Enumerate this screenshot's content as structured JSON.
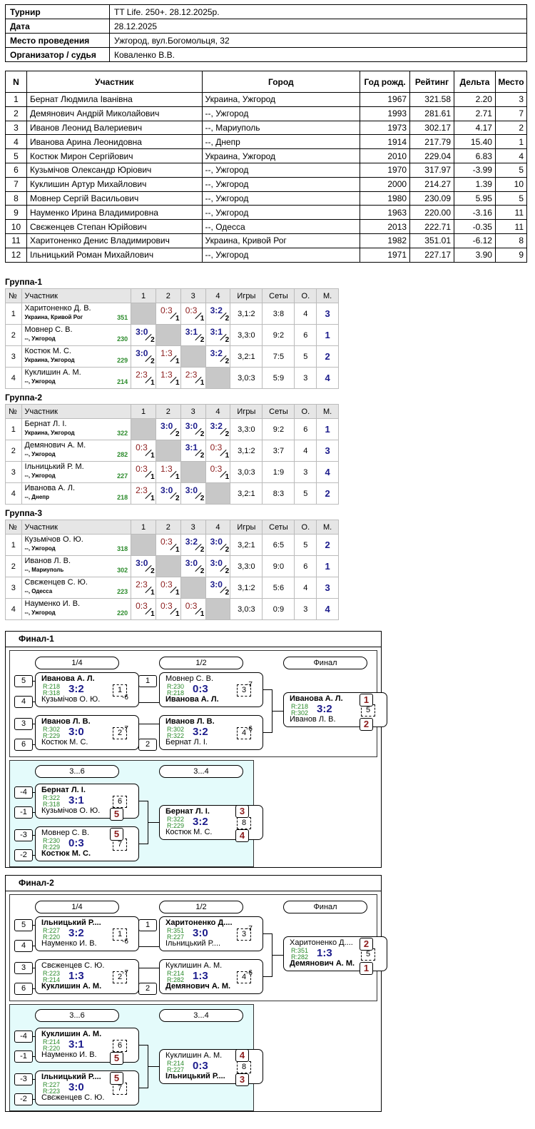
{
  "info": [
    {
      "k": "Турнир",
      "v": "TT Life. 250+. 28.12.2025р."
    },
    {
      "k": "Дата",
      "v": "28.12.2025"
    },
    {
      "k": "Место проведения",
      "v": "Ужгород, вул.Богомольця, 32"
    },
    {
      "k": "Организатор / судья",
      "v": "Коваленко В.В."
    }
  ],
  "participants": {
    "headers": [
      "N",
      "Участник",
      "Город",
      "Год рожд.",
      "Рейтинг",
      "Дельта",
      "Место"
    ],
    "rows": [
      [
        "1",
        "Бернат Людмила Іванівна",
        "Украина, Ужгород",
        "1967",
        "321.58",
        "2.20",
        "3"
      ],
      [
        "2",
        "Демянович Андрій Миколайович",
        "--, Ужгород",
        "1993",
        "281.61",
        "2.71",
        "7"
      ],
      [
        "3",
        "Иванов Леонид Валериевич",
        "--, Мариуполь",
        "1973",
        "302.17",
        "4.17",
        "2"
      ],
      [
        "4",
        "Иванова Арина Леонидовна",
        "--, Днепр",
        "1914",
        "217.79",
        "15.40",
        "1"
      ],
      [
        "5",
        "Костюк Мирон Сергійович",
        "Украина, Ужгород",
        "2010",
        "229.04",
        "6.83",
        "4"
      ],
      [
        "6",
        "Кузьмічов Олександр Юріович",
        "--, Ужгород",
        "1970",
        "317.97",
        "-3.99",
        "5"
      ],
      [
        "7",
        "Куклишин Артур Михайлович",
        "--, Ужгород",
        "2000",
        "214.27",
        "1.39",
        "10"
      ],
      [
        "8",
        "Мовнер Сергій Васильович",
        "--, Ужгород",
        "1980",
        "230.09",
        "5.95",
        "5"
      ],
      [
        "9",
        "Науменко Ирина Владимировна",
        "--, Ужгород",
        "1963",
        "220.00",
        "-3.16",
        "11"
      ],
      [
        "10",
        "Свєженцев Степан Юрійович",
        "--, Одесса",
        "2013",
        "222.71",
        "-0.35",
        "11"
      ],
      [
        "11",
        "Харитоненко Денис Владимирович",
        "Украина, Кривой Рог",
        "1982",
        "351.01",
        "-6.12",
        "8"
      ],
      [
        "12",
        "Ільницький Роман Михайлович",
        "--, Ужгород",
        "1971",
        "227.17",
        "3.90",
        "9"
      ]
    ]
  },
  "group_headers": [
    "№",
    "Участник",
    "1",
    "2",
    "3",
    "4",
    "Игры",
    "Сеты",
    "О.",
    "М."
  ],
  "groups": [
    {
      "title": "Группа-1",
      "rows": [
        {
          "n": "1",
          "name": "Харитоненко Д. В.",
          "city": "Украина, Кривой Рог",
          "rating": "351",
          "cells": [
            null,
            [
              "0:3",
              "1",
              "l"
            ],
            [
              "0:3",
              "1",
              "l"
            ],
            [
              "3:2",
              "2",
              "w"
            ]
          ],
          "games": "3,1:2",
          "sets": "3:8",
          "pts": "4",
          "place": "3"
        },
        {
          "n": "2",
          "name": "Мовнер С. В.",
          "city": "--, Ужгород",
          "rating": "230",
          "cells": [
            [
              "3:0",
              "2",
              "w"
            ],
            null,
            [
              "3:1",
              "2",
              "w"
            ],
            [
              "3:1",
              "2",
              "w"
            ]
          ],
          "games": "3,3:0",
          "sets": "9:2",
          "pts": "6",
          "place": "1"
        },
        {
          "n": "3",
          "name": "Костюк М. С.",
          "city": "Украина, Ужгород",
          "rating": "229",
          "cells": [
            [
              "3:0",
              "2",
              "w"
            ],
            [
              "1:3",
              "1",
              "l"
            ],
            null,
            [
              "3:2",
              "2",
              "w"
            ]
          ],
          "games": "3,2:1",
          "sets": "7:5",
          "pts": "5",
          "place": "2"
        },
        {
          "n": "4",
          "name": "Куклишин А. М.",
          "city": "--, Ужгород",
          "rating": "214",
          "cells": [
            [
              "2:3",
              "1",
              "l"
            ],
            [
              "1:3",
              "1",
              "l"
            ],
            [
              "2:3",
              "1",
              "l"
            ],
            null
          ],
          "games": "3,0:3",
          "sets": "5:9",
          "pts": "3",
          "place": "4"
        }
      ]
    },
    {
      "title": "Группа-2",
      "rows": [
        {
          "n": "1",
          "name": "Бернат Л. І.",
          "city": "Украина, Ужгород",
          "rating": "322",
          "cells": [
            null,
            [
              "3:0",
              "2",
              "w"
            ],
            [
              "3:0",
              "2",
              "w"
            ],
            [
              "3:2",
              "2",
              "w"
            ]
          ],
          "games": "3,3:0",
          "sets": "9:2",
          "pts": "6",
          "place": "1"
        },
        {
          "n": "2",
          "name": "Демянович А. М.",
          "city": "--, Ужгород",
          "rating": "282",
          "cells": [
            [
              "0:3",
              "1",
              "l"
            ],
            null,
            [
              "3:1",
              "2",
              "w"
            ],
            [
              "0:3",
              "1",
              "l"
            ]
          ],
          "games": "3,1:2",
          "sets": "3:7",
          "pts": "4",
          "place": "3"
        },
        {
          "n": "3",
          "name": "Ільницький Р. М.",
          "city": "--, Ужгород",
          "rating": "227",
          "cells": [
            [
              "0:3",
              "1",
              "l"
            ],
            [
              "1:3",
              "1",
              "l"
            ],
            null,
            [
              "0:3",
              "1",
              "l"
            ]
          ],
          "games": "3,0:3",
          "sets": "1:9",
          "pts": "3",
          "place": "4"
        },
        {
          "n": "4",
          "name": "Иванова А. Л.",
          "city": "--, Днепр",
          "rating": "218",
          "cells": [
            [
              "2:3",
              "1",
              "l"
            ],
            [
              "3:0",
              "2",
              "w"
            ],
            [
              "3:0",
              "2",
              "w"
            ],
            null
          ],
          "games": "3,2:1",
          "sets": "8:3",
          "pts": "5",
          "place": "2"
        }
      ]
    },
    {
      "title": "Группа-3",
      "rows": [
        {
          "n": "1",
          "name": "Кузьмічов О. Ю.",
          "city": "--, Ужгород",
          "rating": "318",
          "cells": [
            null,
            [
              "0:3",
              "1",
              "l"
            ],
            [
              "3:2",
              "2",
              "w"
            ],
            [
              "3:0",
              "2",
              "w"
            ]
          ],
          "games": "3,2:1",
          "sets": "6:5",
          "pts": "5",
          "place": "2"
        },
        {
          "n": "2",
          "name": "Иванов Л. В.",
          "city": "--, Мариуполь",
          "rating": "302",
          "cells": [
            [
              "3:0",
              "2",
              "w"
            ],
            null,
            [
              "3:0",
              "2",
              "w"
            ],
            [
              "3:0",
              "2",
              "w"
            ]
          ],
          "games": "3,3:0",
          "sets": "9:0",
          "pts": "6",
          "place": "1"
        },
        {
          "n": "3",
          "name": "Свєженцев С. Ю.",
          "city": "--, Одесса",
          "rating": "223",
          "cells": [
            [
              "2:3",
              "1",
              "l"
            ],
            [
              "0:3",
              "1",
              "l"
            ],
            null,
            [
              "3:0",
              "2",
              "w"
            ]
          ],
          "games": "3,1:2",
          "sets": "5:6",
          "pts": "4",
          "place": "3"
        },
        {
          "n": "4",
          "name": "Науменко И. В.",
          "city": "--, Ужгород",
          "rating": "220",
          "cells": [
            [
              "0:3",
              "1",
              "l"
            ],
            [
              "0:3",
              "1",
              "l"
            ],
            [
              "0:3",
              "1",
              "l"
            ],
            null
          ],
          "games": "3,0:3",
          "sets": "0:9",
          "pts": "3",
          "place": "4"
        }
      ]
    }
  ],
  "finals": [
    {
      "title": "Финал-1",
      "rounds": [
        "1/4",
        "1/2",
        "Финал",
        "3...6",
        "3...4"
      ],
      "matches": [
        {
          "p1": "Иванова А. Л.",
          "p1b": true,
          "r1": "R:218",
          "p2": "Кузьмічов О. Ю.",
          "p2b": false,
          "r2": "R:318",
          "score": "3:2",
          "num": "1"
        },
        {
          "p1": "Иванов Л. В.",
          "p1b": true,
          "r1": "R:302",
          "p2": "Костюк М. С.",
          "p2b": false,
          "r2": "R:229",
          "score": "3:0",
          "num": "2"
        },
        {
          "p1": "Мовнер С. В.",
          "p1b": false,
          "r1": "R:230",
          "p2": "Иванова А. Л.",
          "p2b": true,
          "r2": "R:218",
          "score": "0:3",
          "num": "3"
        },
        {
          "p1": "Иванов Л. В.",
          "p1b": true,
          "r1": "R:302",
          "p2": "Бернат Л. І.",
          "p2b": false,
          "r2": "R:322",
          "score": "3:2",
          "num": "4"
        },
        {
          "p1": "Иванова А. Л.",
          "p1b": true,
          "r1": "R:218",
          "p2": "Иванов Л. В.",
          "p2b": false,
          "r2": "R:302",
          "score": "3:2",
          "num": "5"
        },
        {
          "p1": "Бернат Л. І.",
          "p1b": true,
          "r1": "R:322",
          "p2": "Кузьмічов О. Ю.",
          "p2b": false,
          "r2": "R:318",
          "score": "3:1",
          "num": "6"
        },
        {
          "p1": "Мовнер С. В.",
          "p1b": false,
          "r1": "R:230",
          "p2": "Костюк М. С.",
          "p2b": true,
          "r2": "R:229",
          "score": "0:3",
          "num": "7"
        },
        {
          "p1": "Бернат Л. І.",
          "p1b": true,
          "r1": "R:322",
          "p2": "Костюк М. С.",
          "p2b": false,
          "r2": "R:229",
          "score": "3:2",
          "num": "8"
        }
      ],
      "seeds": [
        "5",
        "4",
        "3",
        "6",
        "1",
        "2",
        "-4",
        "-1",
        "-3",
        "-2"
      ],
      "places": [
        "1",
        "2",
        "5",
        "5",
        "3",
        "4"
      ],
      "notes": [
        "-6",
        "-7",
        "-7",
        "-6"
      ]
    },
    {
      "title": "Финал-2",
      "rounds": [
        "1/4",
        "1/2",
        "Финал",
        "3...6",
        "3...4"
      ],
      "matches": [
        {
          "p1": "Ільницький Р....",
          "p1b": true,
          "r1": "R:227",
          "p2": "Науменко И. В.",
          "p2b": false,
          "r2": "R:220",
          "score": "3:2",
          "num": "1"
        },
        {
          "p1": "Свєженцев С. Ю.",
          "p1b": false,
          "r1": "R:223",
          "p2": "Куклишин А. М.",
          "p2b": true,
          "r2": "R:214",
          "score": "1:3",
          "num": "2"
        },
        {
          "p1": "Харитоненко Д....",
          "p1b": true,
          "r1": "R:351",
          "p2": "Ільницький Р....",
          "p2b": false,
          "r2": "R:227",
          "score": "3:0",
          "num": "3"
        },
        {
          "p1": "Куклишин А. М.",
          "p1b": false,
          "r1": "R:214",
          "p2": "Демянович А. М.",
          "p2b": true,
          "r2": "R:282",
          "score": "1:3",
          "num": "4"
        },
        {
          "p1": "Харитоненко Д....",
          "p1b": false,
          "r1": "R:351",
          "p2": "Демянович А. М.",
          "p2b": true,
          "r2": "R:282",
          "score": "1:3",
          "num": "5"
        },
        {
          "p1": "Куклишин А. М.",
          "p1b": true,
          "r1": "R:214",
          "p2": "Науменко И. В.",
          "p2b": false,
          "r2": "R:220",
          "score": "3:1",
          "num": "6"
        },
        {
          "p1": "Ільницький Р....",
          "p1b": true,
          "r1": "R:227",
          "p2": "Свєженцев С. Ю.",
          "p2b": false,
          "r2": "R:223",
          "score": "3:0",
          "num": "7"
        },
        {
          "p1": "Куклишин А. М.",
          "p1b": false,
          "r1": "R:214",
          "p2": "Ільницький Р....",
          "p2b": true,
          "r2": "R:227",
          "score": "0:3",
          "num": "8"
        }
      ],
      "seeds": [
        "5",
        "4",
        "3",
        "6",
        "1",
        "2",
        "-4",
        "-1",
        "-3",
        "-2"
      ],
      "places": [
        "2",
        "1",
        "5",
        "5",
        "4",
        "3"
      ],
      "notes": [
        "-6",
        "-7",
        "-7",
        "-6"
      ]
    }
  ]
}
